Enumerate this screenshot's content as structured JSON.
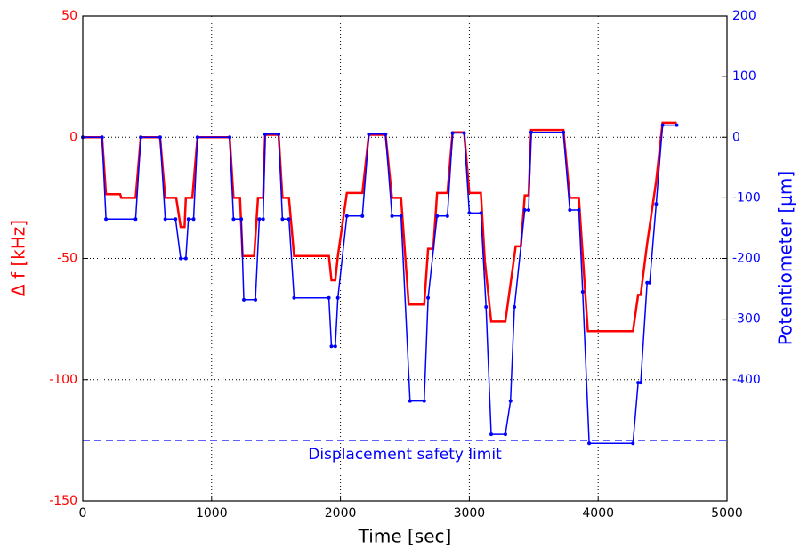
{
  "chart_data": {
    "type": "line",
    "xlabel": "Time [sec]",
    "ylabel": "Δ f [kHz]",
    "y2label": "Potentiometer [μm]",
    "xlim": [
      0,
      5000
    ],
    "xticks": [
      0,
      1000,
      2000,
      3000,
      4000,
      5000
    ],
    "ylim": [
      -150,
      50
    ],
    "yticks": [
      -150,
      -100,
      -50,
      0,
      50
    ],
    "y2lim": [
      -600,
      200
    ],
    "y2ticks": [
      -400,
      -300,
      -200,
      -100,
      0,
      100,
      200
    ],
    "grid": true,
    "safety_limit": {
      "value": -500,
      "label": "Displacement safety limit",
      "axis": "y2",
      "color": "#0000ff"
    },
    "series": [
      {
        "name": "Δ f",
        "color": "#ff0000",
        "axis": "y",
        "x": [
          0,
          150,
          180,
          290,
          300,
          410,
          450,
          600,
          640,
          725,
          760,
          790,
          800,
          850,
          890,
          1140,
          1170,
          1220,
          1240,
          1330,
          1360,
          1400,
          1415,
          1520,
          1550,
          1600,
          1640,
          1910,
          1930,
          1960,
          1980,
          2050,
          2170,
          2220,
          2350,
          2400,
          2470,
          2530,
          2650,
          2680,
          2720,
          2750,
          2830,
          2870,
          2960,
          3000,
          3090,
          3120,
          3170,
          3280,
          3360,
          3400,
          3430,
          3460,
          3480,
          3730,
          3780,
          3850,
          3920,
          4270,
          4310,
          4330,
          4380,
          4450,
          4500,
          4610
        ],
        "values": [
          0,
          0,
          -23.5,
          -23.5,
          -25,
          -25,
          0,
          0,
          -25,
          -25,
          -37,
          -37,
          -25,
          -25,
          0,
          0,
          -25,
          -25,
          -49,
          -49,
          -25,
          -25,
          1,
          1,
          -25,
          -25,
          -49,
          -49,
          -59,
          -59,
          -49,
          -23,
          -23,
          1,
          1,
          -25,
          -25,
          -69,
          -69,
          -46,
          -46,
          -23,
          -23,
          2,
          2,
          -23,
          -23,
          -51,
          -76,
          -76,
          -45,
          -45,
          -24,
          -24,
          3,
          3,
          -25,
          -25,
          -80,
          -80,
          -65,
          -65,
          -44,
          -18,
          6,
          6
        ]
      },
      {
        "name": "Potentiometer",
        "color": "#0000ff",
        "axis": "y2",
        "x": [
          0,
          150,
          180,
          410,
          450,
          600,
          640,
          720,
          760,
          800,
          820,
          860,
          890,
          1140,
          1170,
          1230,
          1250,
          1340,
          1370,
          1400,
          1415,
          1520,
          1550,
          1600,
          1640,
          1910,
          1930,
          1960,
          1980,
          2050,
          2170,
          2220,
          2350,
          2400,
          2470,
          2540,
          2650,
          2680,
          2750,
          2830,
          2870,
          2960,
          3000,
          3090,
          3130,
          3170,
          3280,
          3320,
          3350,
          3430,
          3460,
          3480,
          3730,
          3780,
          3850,
          3880,
          3930,
          4270,
          4310,
          4330,
          4380,
          4400,
          4450,
          4500,
          4610
        ],
        "values": [
          0,
          0,
          -135,
          -135,
          0,
          0,
          -135,
          -135,
          -200,
          -200,
          -135,
          -135,
          0,
          0,
          -135,
          -135,
          -268,
          -268,
          -135,
          -135,
          5,
          5,
          -135,
          -135,
          -265,
          -265,
          -345,
          -345,
          -265,
          -130,
          -130,
          5,
          5,
          -130,
          -130,
          -435,
          -435,
          -265,
          -130,
          -130,
          7,
          7,
          -125,
          -125,
          -280,
          -490,
          -490,
          -435,
          -280,
          -120,
          -120,
          8,
          8,
          -120,
          -120,
          -255,
          -505,
          -505,
          -405,
          -405,
          -240,
          -240,
          -110,
          20,
          20
        ]
      }
    ]
  }
}
